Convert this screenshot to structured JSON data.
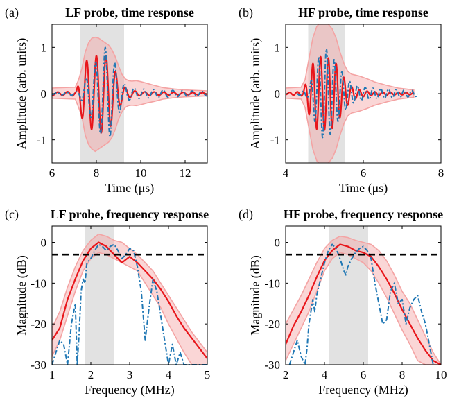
{
  "colors": {
    "band": "#f4a3a3",
    "mean": "#e8161b",
    "measured": "#1f77b4",
    "highlight": "#e2e2e2",
    "threshold": "#000000"
  },
  "chart_data": [
    {
      "type": "line",
      "panel_label": "(a)",
      "title": "LF probe, time response",
      "xlabel": "Time (μs)",
      "ylabel": "Amplitude (arb. units)",
      "xlim": [
        6,
        13
      ],
      "ylim": [
        -1.5,
        1.5
      ],
      "xticks": [
        6,
        8,
        10,
        12
      ],
      "yticks": [
        -1,
        0,
        1
      ],
      "shaded_x": [
        7.25,
        9.25
      ],
      "series": [
        {
          "style": "band",
          "x": [
            6.0,
            7.05,
            7.2,
            7.35,
            7.5,
            7.65,
            7.8,
            7.95,
            8.1,
            8.25,
            8.4,
            8.55,
            8.7,
            8.85,
            9.0,
            9.15,
            9.3,
            9.45,
            9.6,
            9.8,
            10.0,
            10.3,
            10.6,
            11.0,
            11.5,
            12.0,
            13.0
          ],
          "upper": [
            0.12,
            0.14,
            0.3,
            0.55,
            0.9,
            1.1,
            1.2,
            1.22,
            1.2,
            1.15,
            1.1,
            1.05,
            0.95,
            0.8,
            0.6,
            0.42,
            0.32,
            0.28,
            0.27,
            0.28,
            0.26,
            0.22,
            0.18,
            0.13,
            0.1,
            0.08,
            0.06
          ],
          "lower": [
            -0.1,
            -0.12,
            -0.3,
            -0.5,
            -0.9,
            -1.1,
            -1.2,
            -1.25,
            -1.2,
            -1.15,
            -1.1,
            -1.05,
            -0.95,
            -0.78,
            -0.55,
            -0.4,
            -0.3,
            -0.26,
            -0.25,
            -0.26,
            -0.24,
            -0.2,
            -0.17,
            -0.12,
            -0.09,
            -0.07,
            -0.05
          ]
        },
        {
          "style": "mean",
          "envelope_x": [
            6.0,
            7.1,
            7.25,
            7.45,
            7.6,
            7.8,
            8.0,
            8.2,
            8.4,
            8.6,
            8.8,
            9.0,
            9.2,
            9.4,
            9.7,
            10.0,
            13.0
          ],
          "envelope": [
            0.03,
            0.05,
            0.35,
            0.7,
            0.72,
            0.78,
            0.82,
            0.85,
            0.84,
            0.75,
            0.55,
            0.32,
            0.18,
            0.1,
            0.06,
            0.04,
            0.02
          ],
          "frequency_mhz": 2.3,
          "phase_ref": 8.0
        },
        {
          "style": "measured",
          "envelope_x": [
            6.0,
            7.2,
            7.4,
            7.6,
            7.8,
            8.0,
            8.2,
            8.4,
            8.6,
            8.8,
            9.0,
            9.2,
            9.4,
            9.7,
            10.0,
            10.5,
            11.0,
            11.5,
            12.0,
            13.0
          ],
          "envelope": [
            0.02,
            0.04,
            0.2,
            0.4,
            0.55,
            0.7,
            0.88,
            1.0,
            0.95,
            0.7,
            0.45,
            0.25,
            0.15,
            0.12,
            0.1,
            0.09,
            0.08,
            0.07,
            0.06,
            0.05
          ],
          "frequency_mhz": 2.3,
          "phase_ref": 8.4
        }
      ]
    },
    {
      "type": "line",
      "panel_label": "(b)",
      "title": "HF probe, time response",
      "xlabel": "Time (μs)",
      "ylabel": "Amplitude (arb. units)",
      "xlim": [
        4,
        8
      ],
      "ylim": [
        -1.5,
        1.5
      ],
      "xticks": [
        4,
        6,
        8
      ],
      "yticks": [
        -1,
        0,
        1
      ],
      "shaded_x": [
        4.58,
        5.52
      ],
      "series": [
        {
          "style": "band",
          "x": [
            4.0,
            4.4,
            4.5,
            4.6,
            4.7,
            4.8,
            4.9,
            5.0,
            5.1,
            5.2,
            5.3,
            5.4,
            5.5,
            5.6,
            5.7,
            5.8,
            5.9,
            6.1,
            6.3,
            6.6,
            6.9,
            7.3
          ],
          "upper": [
            0.12,
            0.14,
            0.3,
            0.75,
            1.2,
            1.45,
            1.55,
            1.55,
            1.5,
            1.4,
            1.2,
            0.9,
            0.65,
            0.48,
            0.42,
            0.4,
            0.38,
            0.32,
            0.25,
            0.18,
            0.12,
            0.08
          ],
          "lower": [
            -0.1,
            -0.12,
            -0.3,
            -0.75,
            -1.2,
            -1.45,
            -1.55,
            -1.55,
            -1.5,
            -1.4,
            -1.2,
            -0.9,
            -0.65,
            -0.48,
            -0.42,
            -0.4,
            -0.38,
            -0.32,
            -0.25,
            -0.18,
            -0.12,
            -0.08
          ]
        },
        {
          "style": "mean",
          "envelope_x": [
            4.0,
            4.45,
            4.6,
            4.75,
            4.9,
            5.05,
            5.2,
            5.35,
            5.5,
            5.7,
            5.9,
            6.2,
            7.3
          ],
          "envelope": [
            0.02,
            0.05,
            0.45,
            0.75,
            0.8,
            0.78,
            0.75,
            0.6,
            0.35,
            0.15,
            0.08,
            0.04,
            0.02
          ],
          "frequency_mhz": 5.0,
          "phase_ref": 4.9
        },
        {
          "style": "measured",
          "envelope_x": [
            4.3,
            4.6,
            4.75,
            4.9,
            5.0,
            5.1,
            5.2,
            5.35,
            5.5,
            5.7,
            5.9,
            6.2,
            6.6,
            7.0,
            7.4
          ],
          "envelope": [
            0.02,
            0.1,
            0.6,
            0.9,
            1.0,
            0.95,
            0.8,
            0.6,
            0.4,
            0.22,
            0.15,
            0.12,
            0.1,
            0.08,
            0.06
          ],
          "frequency_mhz": 5.0,
          "phase_ref": 5.05
        }
      ]
    },
    {
      "type": "line",
      "panel_label": "(c)",
      "title": "LF probe, frequency response",
      "xlabel": "Frequency (MHz)",
      "ylabel": "Magnitude (dB)",
      "xlim": [
        1,
        5
      ],
      "ylim": [
        -30,
        4
      ],
      "xticks": [
        1,
        2,
        3,
        4,
        5
      ],
      "yticks": [
        -30,
        -20,
        -10,
        0
      ],
      "shaded_x": [
        1.85,
        2.6
      ],
      "threshold_db": -3,
      "series": [
        {
          "style": "band",
          "x": [
            1.0,
            1.2,
            1.4,
            1.6,
            1.8,
            2.0,
            2.2,
            2.4,
            2.6,
            2.8,
            3.0,
            3.2,
            3.4,
            3.6,
            3.8,
            4.0,
            4.2,
            4.4,
            4.6,
            4.8,
            5.0
          ],
          "upper": [
            -21,
            -17,
            -11,
            -6,
            -2,
            0.5,
            2,
            1.5,
            0.5,
            0,
            -1.5,
            -3,
            -5,
            -7,
            -10,
            -13,
            -16,
            -19,
            -22,
            -24.5,
            -27
          ],
          "lower": [
            -28,
            -24,
            -18,
            -12,
            -7,
            -4,
            -2.5,
            -3,
            -4,
            -5,
            -6,
            -7,
            -10,
            -13,
            -16,
            -20,
            -23.5,
            -27,
            -30,
            -30,
            -30
          ]
        },
        {
          "style": "mean",
          "x": [
            1.0,
            1.2,
            1.4,
            1.6,
            1.8,
            2.0,
            2.2,
            2.4,
            2.6,
            2.8,
            3.0,
            3.2,
            3.4,
            3.6,
            3.8,
            4.0,
            4.2,
            4.4,
            4.6,
            4.8,
            5.0
          ],
          "y": [
            -24,
            -21,
            -14,
            -9,
            -4.5,
            -1.5,
            0,
            -1,
            -3,
            -5,
            -3.5,
            -5,
            -7,
            -9,
            -11.5,
            -14.5,
            -18,
            -21,
            -23.5,
            -26,
            -28.5
          ]
        },
        {
          "style": "measured",
          "x": [
            1.0,
            1.1,
            1.2,
            1.3,
            1.4,
            1.5,
            1.6,
            1.65,
            1.7,
            1.75,
            1.8,
            1.85,
            1.9,
            2.0,
            2.1,
            2.2,
            2.3,
            2.4,
            2.5,
            2.6,
            2.7,
            2.8,
            2.9,
            3.0,
            3.1,
            3.2,
            3.3,
            3.4,
            3.5,
            3.6,
            3.7,
            3.8,
            3.9,
            4.0,
            4.1,
            4.2,
            4.3,
            4.4,
            4.6,
            4.8,
            5.0
          ],
          "y": [
            -30,
            -27,
            -24,
            -25,
            -30,
            -20,
            -15,
            -30,
            -22,
            -12,
            -9,
            -10,
            -5,
            -4,
            -2,
            -0.5,
            -1,
            -2,
            -1,
            -0.5,
            -2,
            -4,
            -3,
            -1.5,
            -2,
            -6,
            -12,
            -24,
            -16,
            -9,
            -12,
            -18,
            -24,
            -30,
            -25,
            -30,
            -27,
            -30,
            -30,
            -30,
            -30
          ]
        }
      ]
    },
    {
      "type": "line",
      "panel_label": "(d)",
      "title": "HF probe, frequency response",
      "xlabel": "Frequency (MHz)",
      "ylabel": "Magnitude (dB)",
      "xlim": [
        2,
        10
      ],
      "ylim": [
        -30,
        4
      ],
      "xticks": [
        2,
        4,
        6,
        8,
        10
      ],
      "yticks": [
        -30,
        -20,
        -10,
        0
      ],
      "shaded_x": [
        4.25,
        6.25
      ],
      "threshold_db": -3,
      "series": [
        {
          "style": "band",
          "x": [
            2.0,
            2.4,
            2.8,
            3.2,
            3.6,
            4.0,
            4.4,
            4.8,
            5.2,
            5.6,
            6.0,
            6.4,
            6.8,
            7.2,
            7.6,
            8.0,
            8.4,
            8.8,
            9.2,
            9.6,
            10.0
          ],
          "upper": [
            -20,
            -16.5,
            -13,
            -9,
            -5,
            -1.5,
            0.5,
            1.5,
            1.2,
            0.5,
            0,
            -0.5,
            -2,
            -4.5,
            -8,
            -12,
            -15,
            -19,
            -23,
            -27,
            -30
          ],
          "lower": [
            -29,
            -25,
            -21,
            -17,
            -12,
            -7,
            -4,
            -2.5,
            -3,
            -4,
            -5,
            -7,
            -10,
            -13.5,
            -17.5,
            -21.5,
            -25,
            -29,
            -30,
            -30,
            -30
          ]
        },
        {
          "style": "mean",
          "x": [
            2.0,
            2.4,
            2.8,
            3.2,
            3.6,
            4.0,
            4.4,
            4.8,
            5.2,
            5.6,
            6.0,
            6.4,
            6.8,
            7.2,
            7.6,
            8.0,
            8.4,
            8.8,
            9.2,
            9.6,
            10.0
          ],
          "y": [
            -25,
            -20.5,
            -17,
            -13,
            -8.5,
            -4.5,
            -2,
            -0.5,
            -1,
            -2,
            -2.5,
            -3.5,
            -6,
            -9,
            -12.5,
            -16.5,
            -20,
            -23.5,
            -26.5,
            -29,
            -30
          ]
        },
        {
          "style": "measured",
          "x": [
            2.2,
            2.4,
            2.6,
            2.8,
            3.0,
            3.1,
            3.2,
            3.4,
            3.5,
            3.6,
            3.8,
            4.0,
            4.2,
            4.4,
            4.6,
            4.8,
            5.0,
            5.1,
            5.2,
            5.4,
            5.6,
            5.8,
            6.0,
            6.2,
            6.4,
            6.6,
            6.8,
            7.0,
            7.2,
            7.4,
            7.6,
            7.8,
            8.0,
            8.2,
            8.4,
            8.6,
            8.8,
            9.0,
            9.2,
            9.4,
            9.6
          ],
          "y": [
            -30,
            -27,
            -24,
            -28,
            -30,
            -26,
            -20,
            -14,
            -17,
            -13,
            -9,
            -5,
            -2,
            -0.5,
            -1.5,
            -4,
            -7,
            -8,
            -6,
            -4,
            -2.5,
            -1.5,
            -1,
            -2,
            -4,
            -10,
            -15,
            -20,
            -19,
            -12,
            -10,
            -15,
            -14,
            -20,
            -16,
            -14,
            -13,
            -17,
            -20,
            -25,
            -30
          ]
        }
      ]
    }
  ]
}
